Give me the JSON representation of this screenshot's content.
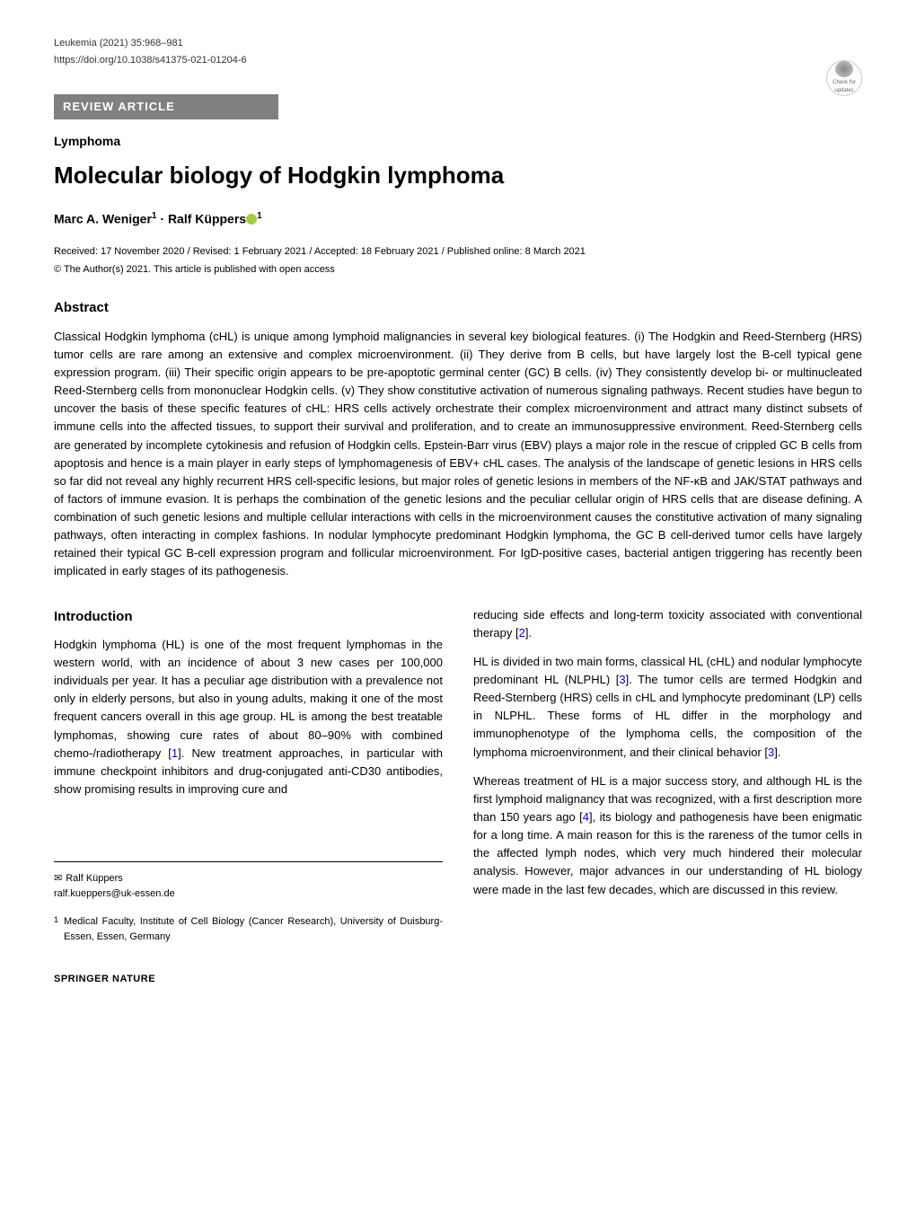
{
  "journal_header": {
    "citation": "Leukemia (2021) 35:968–981",
    "doi": "https://doi.org/10.1038/s41375-021-01204-6"
  },
  "article_type_banner": "REVIEW ARTICLE",
  "subcategory": "Lymphoma",
  "title": "Molecular biology of Hodgkin lymphoma",
  "authors_line_prefix": "Marc A. Weniger",
  "authors_sup1": "1",
  "authors_dot": " · ",
  "authors_second": "Ralf Küppers",
  "authors_sup2": "1",
  "check_updates_label": "Check for updates",
  "dates": "Received: 17 November 2020 / Revised: 1 February 2021 / Accepted: 18 February 2021 / Published online: 8 March 2021",
  "copyright": "© The Author(s) 2021. This article is published with open access",
  "abstract_heading": "Abstract",
  "abstract_text": "Classical Hodgkin lymphoma (cHL) is unique among lymphoid malignancies in several key biological features. (i) The Hodgkin and Reed-Sternberg (HRS) tumor cells are rare among an extensive and complex microenvironment. (ii) They derive from B cells, but have largely lost the B-cell typical gene expression program. (iii) Their specific origin appears to be pre-apoptotic germinal center (GC) B cells. (iv) They consistently develop bi- or multinucleated Reed-Sternberg cells from mononuclear Hodgkin cells. (v) They show constitutive activation of numerous signaling pathways. Recent studies have begun to uncover the basis of these specific features of cHL: HRS cells actively orchestrate their complex microenvironment and attract many distinct subsets of immune cells into the affected tissues, to support their survival and proliferation, and to create an immunosuppressive environment. Reed-Sternberg cells are generated by incomplete cytokinesis and refusion of Hodgkin cells. Epstein-Barr virus (EBV) plays a major role in the rescue of crippled GC B cells from apoptosis and hence is a main player in early steps of lymphomagenesis of EBV+ cHL cases. The analysis of the landscape of genetic lesions in HRS cells so far did not reveal any highly recurrent HRS cell-specific lesions, but major roles of genetic lesions in members of the NF-κB and JAK/STAT pathways and of factors of immune evasion. It is perhaps the combination of the genetic lesions and the peculiar cellular origin of HRS cells that are disease defining. A combination of such genetic lesions and multiple cellular interactions with cells in the microenvironment causes the constitutive activation of many signaling pathways, often interacting in complex fashions. In nodular lymphocyte predominant Hodgkin lymphoma, the GC B cell-derived tumor cells have largely retained their typical GC B-cell expression program and follicular microenvironment. For IgD-positive cases, bacterial antigen triggering has recently been implicated in early stages of its pathogenesis.",
  "intro_heading": "Introduction",
  "col1_p1_a": "Hodgkin lymphoma (HL) is one of the most frequent lymphomas in the western world, with an incidence of about 3 new cases per 100,000 individuals per year. It has a peculiar age distribution with a prevalence not only in elderly persons, but also in young adults, making it one of the most frequent cancers overall in this age group. HL is among the best treatable lymphomas, showing cure rates of about 80–90% with combined chemo-/radiotherapy [",
  "ref1": "1",
  "col1_p1_b": "]. New treatment approaches, in particular with immune checkpoint inhibitors and drug-conjugated anti-CD30 antibodies, show promising results in improving cure and",
  "col2_p1_a": "reducing side effects and long-term toxicity associated with conventional therapy [",
  "ref2": "2",
  "col2_p1_b": "].",
  "col2_p2_a": "HL is divided in two main forms, classical HL (cHL) and nodular lymphocyte predominant HL (NLPHL) [",
  "ref3a": "3",
  "col2_p2_b": "]. The tumor cells are termed Hodgkin and Reed-Sternberg (HRS) cells in cHL and lymphocyte predominant (LP) cells in NLPHL. These forms of HL differ in the morphology and immunophenotype of the lymphoma cells, the composition of the lymphoma microenvironment, and their clinical behavior [",
  "ref3b": "3",
  "col2_p2_c": "].",
  "col2_p3_a": "Whereas treatment of HL is a major success story, and although HL is the first lymphoid malignancy that was recognized, with a first description more than 150 years ago [",
  "ref4": "4",
  "col2_p3_b": "], its biology and pathogenesis have been enigmatic for a long time. A main reason for this is the rareness of the tumor cells in the affected lymph nodes, which very much hindered their molecular analysis. However, major advances in our understanding of HL biology were made in the last few decades, which are discussed in this review.",
  "correspondence": {
    "name": "Ralf Küppers",
    "email": "ralf.kueppers@uk-essen.de"
  },
  "affiliation": {
    "num": "1",
    "text": "Medical Faculty, Institute of Cell Biology (Cancer Research), University of Duisburg-Essen, Essen, Germany"
  },
  "footer_brand": "SPRINGER NATURE",
  "colors": {
    "banner_bg": "#808080",
    "banner_text": "#ffffff",
    "text": "#000000",
    "ref_link": "#0000ee",
    "orcid": "#a6ce39"
  }
}
